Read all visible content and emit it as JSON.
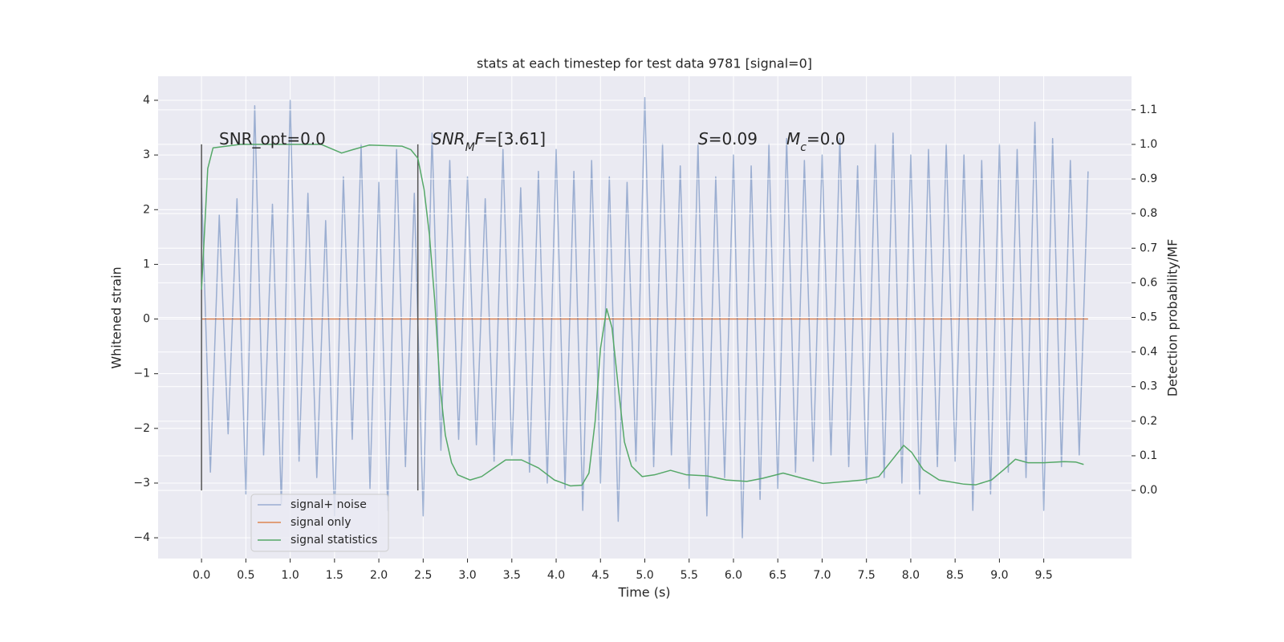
{
  "chart_data": {
    "type": "line",
    "title": "stats at each timestep for test data 9781 [signal=0]",
    "xlabel": "Time (s)",
    "ylabel": "Whitened strain",
    "y2label": "Detection probability/MF",
    "xlim": [
      -0.49,
      10.49
    ],
    "xticks": [
      {
        "value": 0,
        "label": "0.0"
      },
      0.5,
      {
        "value": 1,
        "label": "1.0"
      },
      1.5,
      {
        "value": 2,
        "label": "2.0"
      },
      2.5,
      {
        "value": 3,
        "label": "3.0"
      },
      3.5,
      {
        "value": 4,
        "label": "4.0"
      },
      4.5,
      {
        "value": 5,
        "label": "5.0"
      },
      5.5,
      {
        "value": 6,
        "label": "6.0"
      },
      6.5,
      {
        "value": 7,
        "label": "7.0"
      },
      7.5,
      {
        "value": 8,
        "label": "8.0"
      },
      8.5,
      {
        "value": 9,
        "label": "9.0"
      },
      9.5
    ],
    "ylim": [
      -4.38,
      4.44
    ],
    "yticks": [
      {
        "value": -4,
        "label": "−4"
      },
      {
        "value": -3,
        "label": "−3"
      },
      {
        "value": -2,
        "label": "−2"
      },
      {
        "value": -1,
        "label": "−1"
      },
      0,
      1,
      2,
      3,
      4
    ],
    "y2lim": [
      -0.197,
      1.197
    ],
    "y2ticks": [
      {
        "value": 0,
        "label": "0.0"
      },
      0.1,
      0.2,
      0.3,
      0.4,
      0.5,
      0.6,
      0.7,
      0.8,
      0.9,
      {
        "value": 1,
        "label": "1.0"
      },
      1.1
    ],
    "grid": true,
    "legend": "lower left",
    "series": [
      {
        "name": "signal+ noise",
        "color": "#4c72b0",
        "alpha": 0.5,
        "x": [
          0,
          0.1,
          0.2,
          0.3,
          0.4,
          0.5,
          0.6,
          0.7,
          0.8,
          0.9,
          1,
          1.1,
          1.2,
          1.3,
          1.4,
          1.5,
          1.6,
          1.7,
          1.8,
          1.9,
          2,
          2.1,
          2.2,
          2.3,
          2.4,
          2.5,
          2.6,
          2.7,
          2.8,
          2.9,
          3,
          3.1,
          3.2,
          3.3,
          3.4,
          3.5,
          3.6,
          3.7,
          3.8,
          3.9,
          4,
          4.1,
          4.2,
          4.3,
          4.4,
          4.5,
          4.6,
          4.7,
          4.8,
          4.9,
          5,
          5.1,
          5.2,
          5.3,
          5.4,
          5.5,
          5.6,
          5.7,
          5.8,
          5.9,
          6,
          6.1,
          6.2,
          6.3,
          6.4,
          6.5,
          6.6,
          6.7,
          6.8,
          6.9,
          7,
          7.1,
          7.2,
          7.3,
          7.4,
          7.5,
          7.6,
          7.7,
          7.8,
          7.9,
          8,
          8.1,
          8.2,
          8.3,
          8.4,
          8.5,
          8.6,
          8.7,
          8.8,
          8.9,
          9,
          9.1,
          9.2,
          9.3,
          9.4,
          9.5,
          9.6,
          9.7,
          9.8,
          9.9,
          10
        ],
        "values": [
          2.4,
          -2.8,
          1.9,
          -2.1,
          2.2,
          -3.2,
          3.9,
          -2.5,
          2.1,
          -3.4,
          4.0,
          -2.6,
          2.3,
          -2.9,
          1.8,
          -3.6,
          2.6,
          -2.2,
          3.2,
          -3.1,
          2.5,
          -3.5,
          3.1,
          -2.7,
          2.3,
          -3.6,
          3.4,
          -2.4,
          2.9,
          -2.2,
          2.6,
          -2.3,
          2.2,
          -2.6,
          3.1,
          -2.5,
          2.4,
          -2.8,
          2.7,
          -3.0,
          3.1,
          -3.1,
          2.7,
          -3.5,
          2.9,
          -3.0,
          2.6,
          -3.7,
          2.5,
          -2.6,
          4.05,
          -2.7,
          3.2,
          -2.5,
          2.8,
          -3.1,
          3.2,
          -3.6,
          2.6,
          -2.9,
          3.0,
          -4.0,
          2.8,
          -3.3,
          3.2,
          -3.1,
          3.3,
          -2.8,
          2.9,
          -2.6,
          3.0,
          -2.5,
          3.3,
          -2.7,
          2.8,
          -3.0,
          3.2,
          -2.9,
          3.4,
          -3.0,
          3.0,
          -3.2,
          3.1,
          -2.7,
          3.2,
          -2.6,
          3.0,
          -3.5,
          2.9,
          -3.2,
          3.2,
          -2.8,
          3.1,
          -2.9,
          3.6,
          -3.5,
          3.3,
          -2.7,
          2.9,
          -2.5,
          2.7
        ]
      },
      {
        "name": "signal only",
        "color": "#dd8452",
        "x": [
          0,
          10
        ],
        "values": [
          0,
          0
        ]
      },
      {
        "name": "signal statistics",
        "color": "#55a868",
        "axis": "y2",
        "x": [
          0,
          0.07,
          0.13,
          0.44,
          1.35,
          1.58,
          1.71,
          1.89,
          2.26,
          2.36,
          2.44,
          2.51,
          2.57,
          2.63,
          2.69,
          2.75,
          2.82,
          2.89,
          3.03,
          3.16,
          3.3,
          3.43,
          3.61,
          3.8,
          3.98,
          4.16,
          4.29,
          4.37,
          4.44,
          4.5,
          4.57,
          4.63,
          4.7,
          4.77,
          4.85,
          4.97,
          5.11,
          5.29,
          5.47,
          5.7,
          5.92,
          6.15,
          6.33,
          6.56,
          6.78,
          7.01,
          7.24,
          7.46,
          7.64,
          7.78,
          7.92,
          8.01,
          8.14,
          8.32,
          8.6,
          8.73,
          8.91,
          9.05,
          9.18,
          9.32,
          9.5,
          9.73,
          9.86,
          9.95
        ],
        "values": [
          0.58,
          0.93,
          0.99,
          1.0,
          1.0,
          0.975,
          0.985,
          0.998,
          0.995,
          0.985,
          0.96,
          0.87,
          0.74,
          0.55,
          0.3,
          0.16,
          0.08,
          0.045,
          0.03,
          0.04,
          0.065,
          0.088,
          0.088,
          0.065,
          0.03,
          0.013,
          0.015,
          0.05,
          0.2,
          0.41,
          0.525,
          0.47,
          0.3,
          0.14,
          0.07,
          0.04,
          0.045,
          0.058,
          0.045,
          0.042,
          0.03,
          0.026,
          0.035,
          0.05,
          0.035,
          0.02,
          0.025,
          0.03,
          0.04,
          0.085,
          0.13,
          0.11,
          0.06,
          0.03,
          0.018,
          0.016,
          0.03,
          0.06,
          0.09,
          0.08,
          0.08,
          0.083,
          0.082,
          0.075
        ]
      }
    ],
    "vlines": {
      "x": [
        0,
        2.44
      ],
      "ymin": 0,
      "ymax": 1,
      "axis": "y2",
      "color": "#555555"
    },
    "annotations": [
      [
        {
          "text": "SNR_opt=0.0",
          "style": "normal"
        }
      ],
      [
        {
          "text": "SNR",
          "style": "italic"
        },
        {
          "text": "M",
          "style": "sub"
        },
        {
          "text": "F",
          "style": "italic"
        },
        {
          "text": "=[3.61]",
          "style": "normal"
        }
      ],
      [
        {
          "text": "S",
          "style": "italic"
        },
        {
          "text": "=0.09",
          "style": "normal"
        }
      ],
      [
        {
          "text": "M",
          "style": "italic"
        },
        {
          "text": "c",
          "style": "sub"
        },
        {
          "text": "=0.0",
          "style": "normal"
        }
      ]
    ]
  }
}
